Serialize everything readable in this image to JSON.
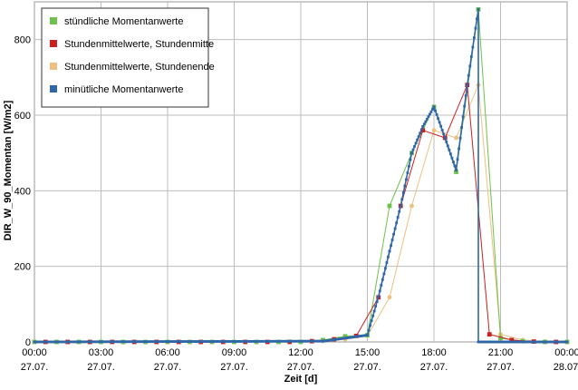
{
  "chart_data": {
    "type": "line",
    "xlabel": "Zeit [d]",
    "ylabel": "DIR_W_90_Momentan [W/m2]",
    "xlim_hours": [
      0,
      24
    ],
    "ylim": [
      0,
      900
    ],
    "grid": true,
    "legend_placement": "top-left",
    "x_ticks": [
      {
        "hour": 0,
        "time": "00:00",
        "date": "27.07."
      },
      {
        "hour": 3,
        "time": "03:00",
        "date": "27.07."
      },
      {
        "hour": 6,
        "time": "06:00",
        "date": "27.07."
      },
      {
        "hour": 9,
        "time": "09:00",
        "date": "27.07."
      },
      {
        "hour": 12,
        "time": "12:00",
        "date": "27.07."
      },
      {
        "hour": 15,
        "time": "15:00",
        "date": "27.07."
      },
      {
        "hour": 18,
        "time": "18:00",
        "date": "27.07."
      },
      {
        "hour": 21,
        "time": "21:00",
        "date": "27.07."
      },
      {
        "hour": 24,
        "time": "00:00",
        "date": "28.07."
      }
    ],
    "y_ticks": [
      0,
      200,
      400,
      600,
      800
    ],
    "series": [
      {
        "name": "stündliche Momentanwerte",
        "color": "#6cc24a",
        "marker": "square",
        "x": [
          0,
          1,
          2,
          3,
          4,
          5,
          6,
          7,
          8,
          9,
          10,
          11,
          12,
          13,
          14,
          15,
          16,
          17,
          18,
          19,
          20,
          21,
          22,
          23,
          24
        ],
        "y": [
          0,
          0,
          0,
          0,
          0,
          0,
          0,
          0,
          0,
          0,
          0,
          0,
          0,
          5,
          15,
          18,
          360,
          500,
          622,
          450,
          880,
          10,
          2,
          0,
          0
        ]
      },
      {
        "name": "Stundenmittelwerte, Stundenmitte",
        "color": "#cc1f1f",
        "marker": "square",
        "x": [
          0.5,
          1.5,
          2.5,
          3.5,
          4.5,
          5.5,
          6.5,
          7.5,
          8.5,
          9.5,
          10.5,
          11.5,
          12.5,
          13.5,
          14.5,
          15.5,
          16.5,
          17.5,
          18.5,
          19.5,
          20.5,
          21.5,
          22.5,
          23.5
        ],
        "y": [
          0,
          0,
          0,
          0,
          0,
          0,
          0,
          0,
          0,
          0,
          0,
          0,
          2,
          7,
          16,
          118,
          360,
          560,
          540,
          680,
          20,
          5,
          1,
          0
        ]
      },
      {
        "name": "Stundenmittelwerte, Stundenende",
        "color": "#ecc07f",
        "marker": "circle",
        "x": [
          1,
          2,
          3,
          4,
          5,
          6,
          7,
          8,
          9,
          10,
          11,
          12,
          13,
          14,
          15,
          16,
          17,
          18,
          19,
          20,
          21,
          22,
          23,
          24
        ],
        "y": [
          0,
          0,
          0,
          0,
          0,
          0,
          0,
          0,
          0,
          0,
          0,
          0,
          2,
          7,
          16,
          118,
          360,
          560,
          540,
          680,
          20,
          5,
          1,
          0
        ]
      },
      {
        "name": "minütliche Momentanwerte",
        "color": "#2f66a8",
        "marker": "dense-line",
        "x": [
          0,
          13,
          14,
          15,
          15.5,
          16,
          16.5,
          17,
          17.5,
          18,
          18.5,
          19,
          19.5,
          20,
          20,
          20.5,
          24
        ],
        "y": [
          0,
          2,
          10,
          18,
          120,
          240,
          360,
          500,
          570,
          622,
          540,
          455,
          680,
          880,
          0,
          0,
          0
        ]
      }
    ]
  }
}
